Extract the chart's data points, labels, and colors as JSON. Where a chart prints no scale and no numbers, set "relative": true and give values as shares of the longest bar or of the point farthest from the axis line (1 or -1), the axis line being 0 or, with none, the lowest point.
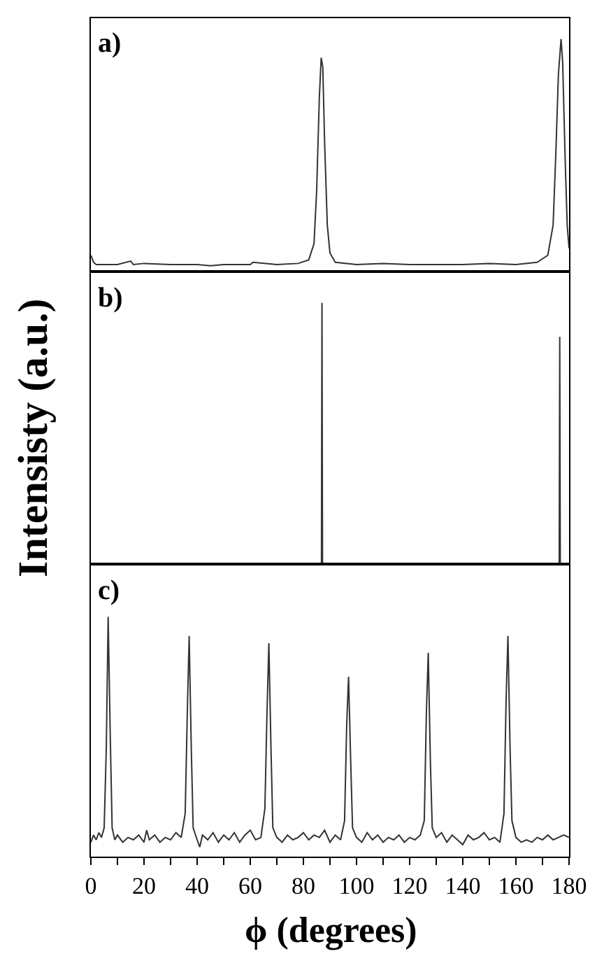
{
  "chart_data": [
    {
      "type": "line",
      "title": "a)",
      "relative": true,
      "xlim": [
        0,
        180
      ],
      "tick_labels": false,
      "grid": false,
      "marker": "none",
      "line_style": "solid",
      "series": [
        {
          "color": "#333333",
          "x": [
            0,
            1,
            2,
            6,
            10,
            15,
            16,
            20,
            30,
            40,
            45,
            50,
            60,
            61,
            70,
            78,
            82,
            84,
            85,
            86,
            86.7,
            87.3,
            88,
            89,
            90,
            92,
            100,
            110,
            120,
            130,
            140,
            150,
            160,
            168,
            172,
            174,
            175,
            176,
            177,
            177.6,
            178.5,
            179.3,
            180
          ],
          "values": [
            0.07,
            0.04,
            0.03,
            0.03,
            0.03,
            0.045,
            0.03,
            0.035,
            0.03,
            0.03,
            0.025,
            0.03,
            0.03,
            0.04,
            0.03,
            0.035,
            0.05,
            0.12,
            0.35,
            0.75,
            0.92,
            0.88,
            0.55,
            0.2,
            0.08,
            0.04,
            0.03,
            0.035,
            0.03,
            0.03,
            0.03,
            0.035,
            0.03,
            0.04,
            0.07,
            0.2,
            0.5,
            0.85,
            1,
            0.9,
            0.5,
            0.2,
            0.1
          ]
        }
      ]
    },
    {
      "type": "line",
      "title": "b)",
      "relative": true,
      "xlim": [
        0,
        180
      ],
      "tick_labels": false,
      "grid": false,
      "marker": "none",
      "line_style": "solid",
      "ylabel": "Intensisty (a.u.)",
      "series": [
        {
          "color": "#333333",
          "x": [
            0,
            86.8,
            87,
            87.2,
            176.3,
            176.5,
            176.7,
            180
          ],
          "values": [
            0,
            0,
            1,
            0,
            0,
            0.87,
            0,
            0
          ]
        }
      ]
    },
    {
      "type": "line",
      "title": "c)",
      "relative": true,
      "xlim": [
        0,
        180
      ],
      "tick_labels": "x",
      "grid": false,
      "marker": "none",
      "line_style": "solid",
      "xlabel": "ϕ (degrees)",
      "xticks": [
        0,
        {
          "value": 10,
          "label": null
        },
        20,
        {
          "value": 30,
          "label": null
        },
        40,
        {
          "value": 50,
          "label": null
        },
        60,
        {
          "value": 70,
          "label": null
        },
        80,
        {
          "value": 90,
          "label": null
        },
        100,
        {
          "value": 110,
          "label": null
        },
        120,
        {
          "value": 130,
          "label": null
        },
        140,
        {
          "value": 150,
          "label": null
        },
        160,
        {
          "value": 170,
          "label": null
        },
        180
      ],
      "series": [
        {
          "color": "#333333",
          "x": [
            0,
            1,
            2,
            3,
            4,
            5,
            5.8,
            6.5,
            7.3,
            8,
            9,
            10,
            12,
            14,
            16,
            18,
            20,
            21,
            22,
            24,
            26,
            28,
            30,
            32,
            34,
            35.5,
            36.3,
            37,
            37.8,
            38.5,
            40,
            41,
            42,
            44,
            46,
            48,
            50,
            52,
            54,
            56,
            58,
            60,
            62,
            64,
            65.5,
            66.3,
            67,
            67.8,
            68.5,
            70,
            72,
            74,
            76,
            78,
            80,
            82,
            84,
            86,
            88,
            90,
            92,
            94,
            95.5,
            96.3,
            97,
            97.8,
            98.5,
            100,
            102,
            104,
            106,
            108,
            110,
            112,
            114,
            116,
            118,
            120,
            122,
            124,
            125.5,
            126.3,
            127,
            127.8,
            128.5,
            130,
            132,
            134,
            136,
            138,
            140,
            142,
            144,
            146,
            148,
            150,
            152,
            154,
            155.5,
            156.3,
            157,
            157.8,
            158.5,
            160,
            162,
            164,
            166,
            168,
            170,
            172,
            174,
            176,
            178,
            180
          ],
          "values": [
            0.06,
            0.09,
            0.07,
            0.1,
            0.08,
            0.12,
            0.45,
            1,
            0.5,
            0.12,
            0.07,
            0.09,
            0.06,
            0.08,
            0.07,
            0.09,
            0.06,
            0.11,
            0.07,
            0.09,
            0.06,
            0.08,
            0.07,
            0.1,
            0.08,
            0.18,
            0.6,
            0.92,
            0.45,
            0.12,
            0.07,
            0.04,
            0.09,
            0.07,
            0.1,
            0.06,
            0.09,
            0.07,
            0.1,
            0.06,
            0.09,
            0.11,
            0.07,
            0.08,
            0.2,
            0.6,
            0.89,
            0.45,
            0.12,
            0.08,
            0.06,
            0.09,
            0.07,
            0.08,
            0.1,
            0.07,
            0.09,
            0.08,
            0.11,
            0.06,
            0.09,
            0.07,
            0.15,
            0.55,
            0.75,
            0.4,
            0.12,
            0.08,
            0.06,
            0.1,
            0.07,
            0.09,
            0.06,
            0.08,
            0.07,
            0.09,
            0.06,
            0.08,
            0.07,
            0.09,
            0.15,
            0.6,
            0.85,
            0.4,
            0.12,
            0.08,
            0.1,
            0.06,
            0.09,
            0.07,
            0.05,
            0.09,
            0.07,
            0.08,
            0.1,
            0.07,
            0.08,
            0.06,
            0.18,
            0.65,
            0.92,
            0.45,
            0.15,
            0.08,
            0.06,
            0.07,
            0.06,
            0.08,
            0.07,
            0.09,
            0.07,
            0.08,
            0.09,
            0.08
          ]
        }
      ]
    }
  ]
}
